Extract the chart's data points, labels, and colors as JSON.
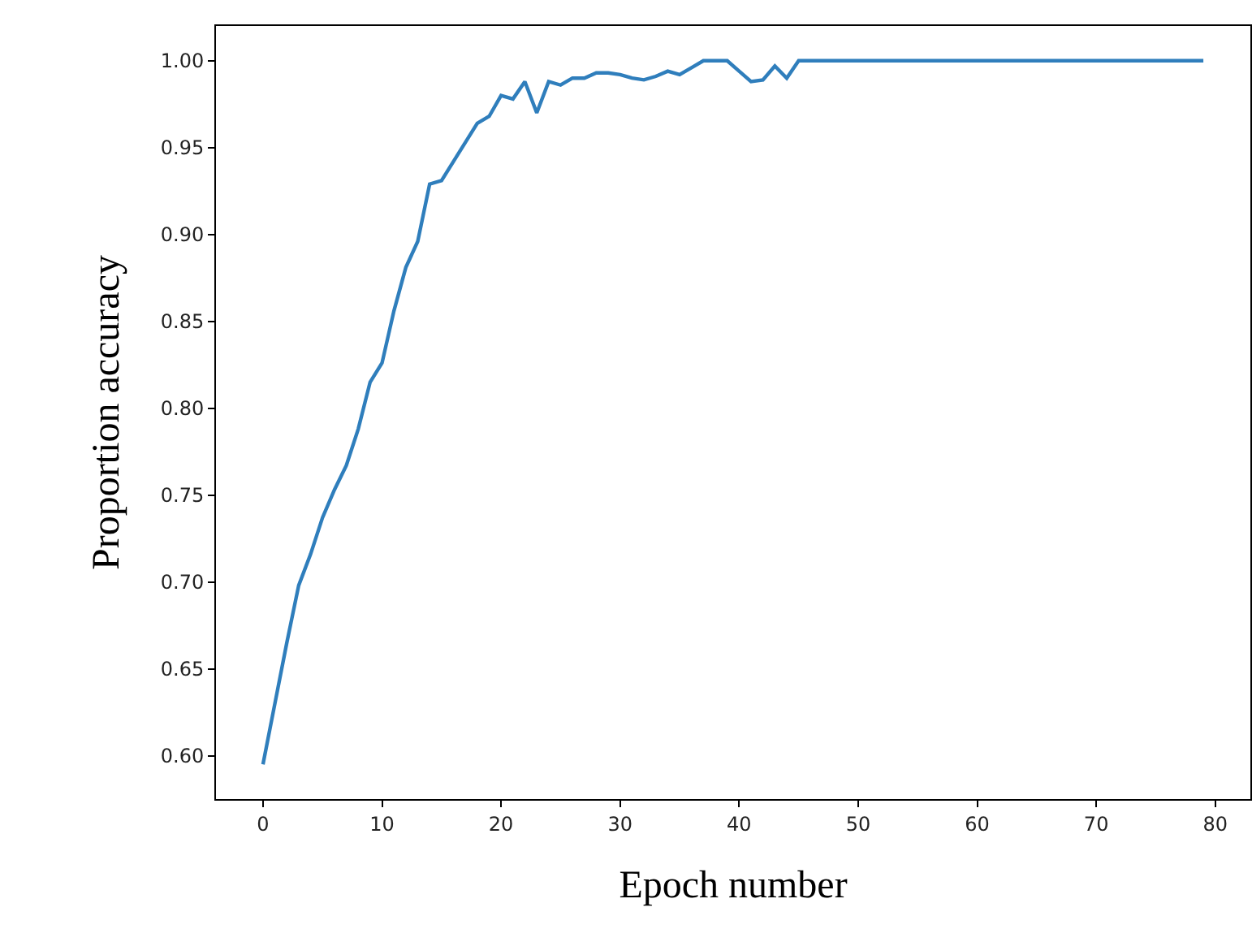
{
  "chart_data": {
    "type": "line",
    "xlabel": "Epoch number",
    "ylabel": "Proportion accuracy",
    "x": [
      0,
      1,
      2,
      3,
      4,
      5,
      6,
      7,
      8,
      9,
      10,
      11,
      12,
      13,
      14,
      15,
      16,
      17,
      18,
      19,
      20,
      21,
      22,
      23,
      24,
      25,
      26,
      27,
      28,
      29,
      30,
      31,
      32,
      33,
      34,
      35,
      36,
      37,
      38,
      39,
      40,
      41,
      42,
      43,
      44,
      45,
      46,
      47,
      48,
      49,
      50,
      51,
      52,
      53,
      54,
      55,
      56,
      57,
      58,
      59,
      60,
      61,
      62,
      63,
      64,
      65,
      66,
      67,
      68,
      69,
      70,
      71,
      72,
      73,
      74,
      75,
      76,
      77,
      78,
      79
    ],
    "series": [
      {
        "color": "#2f7ebc",
        "values": [
          0.595,
          0.63,
          0.665,
          0.698,
          0.716,
          0.737,
          0.753,
          0.767,
          0.788,
          0.815,
          0.826,
          0.856,
          0.881,
          0.896,
          0.929,
          0.931,
          0.942,
          0.953,
          0.964,
          0.968,
          0.98,
          0.978,
          0.988,
          0.97,
          0.988,
          0.986,
          0.99,
          0.99,
          0.993,
          0.993,
          0.992,
          0.99,
          0.989,
          0.991,
          0.994,
          0.992,
          0.996,
          1.0,
          1.0,
          1.0,
          0.994,
          0.988,
          0.989,
          0.997,
          0.99,
          1.0,
          1.0,
          1.0,
          1.0,
          1.0,
          1.0,
          1.0,
          1.0,
          1.0,
          1.0,
          1.0,
          1.0,
          1.0,
          1.0,
          1.0,
          1.0,
          1.0,
          1.0,
          1.0,
          1.0,
          1.0,
          1.0,
          1.0,
          1.0,
          1.0,
          1.0,
          1.0,
          1.0,
          1.0,
          1.0,
          1.0,
          1.0,
          1.0,
          1.0,
          1.0
        ]
      }
    ],
    "xlim": [
      -3.95,
      82.95
    ],
    "xticks": [
      0,
      10,
      20,
      30,
      40,
      50,
      60,
      70,
      80
    ],
    "ylim": [
      0.575,
      1.02
    ],
    "yticks": [
      {
        "value": 0.6,
        "label": "0.60"
      },
      {
        "value": 0.65,
        "label": "0.65"
      },
      {
        "value": 0.7,
        "label": "0.70"
      },
      {
        "value": 0.75,
        "label": "0.75"
      },
      {
        "value": 0.8,
        "label": "0.80"
      },
      {
        "value": 0.85,
        "label": "0.85"
      },
      {
        "value": 0.9,
        "label": "0.90"
      },
      {
        "value": 0.95,
        "label": "0.95"
      },
      {
        "value": 1.0,
        "label": "1.00"
      }
    ],
    "legend": false,
    "marker": "none",
    "line_style": "solid"
  }
}
